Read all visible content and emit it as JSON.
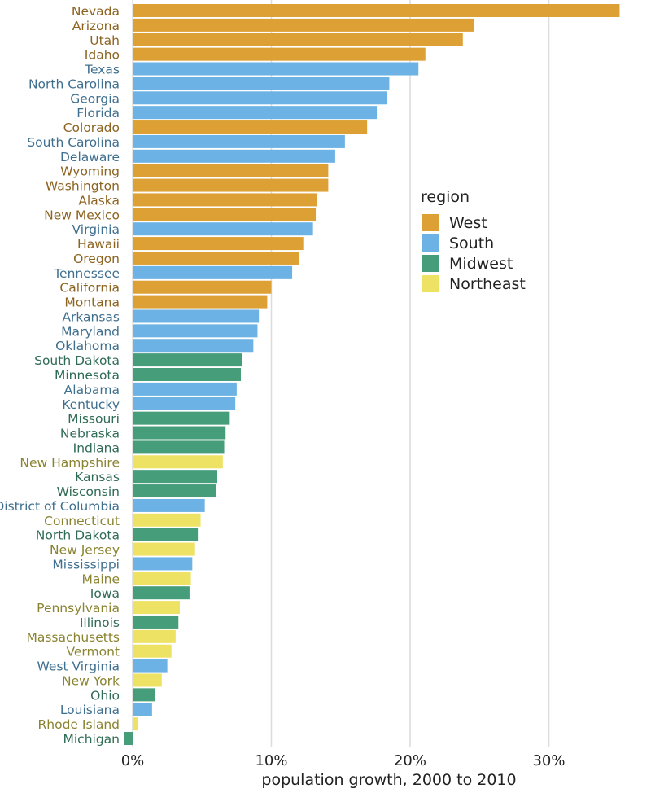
{
  "chart_data": {
    "type": "bar",
    "orientation": "horizontal",
    "xlabel": "population growth, 2000 to 2010",
    "ylabel": "",
    "xlim": [
      -0.6,
      35.5
    ],
    "x_ticks": [
      0,
      10,
      20,
      30
    ],
    "x_tick_labels": [
      "0%",
      "10%",
      "20%",
      "30%"
    ],
    "grid": "vertical major lines",
    "legend": {
      "title": "region",
      "placement": "right",
      "entries": [
        {
          "name": "West",
          "color": "#DDA035",
          "label_color": "#8C6320"
        },
        {
          "name": "South",
          "color": "#6CB2E4",
          "label_color": "#3F6F8F"
        },
        {
          "name": "Midwest",
          "color": "#459D79",
          "label_color": "#2F6B55"
        },
        {
          "name": "Northeast",
          "color": "#EEE265",
          "label_color": "#8A8330"
        }
      ]
    },
    "bars": [
      {
        "state": "Nevada",
        "value": 35.1,
        "region": "West"
      },
      {
        "state": "Arizona",
        "value": 24.6,
        "region": "West"
      },
      {
        "state": "Utah",
        "value": 23.8,
        "region": "West"
      },
      {
        "state": "Idaho",
        "value": 21.1,
        "region": "West"
      },
      {
        "state": "Texas",
        "value": 20.6,
        "region": "South"
      },
      {
        "state": "North Carolina",
        "value": 18.5,
        "region": "South"
      },
      {
        "state": "Georgia",
        "value": 18.3,
        "region": "South"
      },
      {
        "state": "Florida",
        "value": 17.6,
        "region": "South"
      },
      {
        "state": "Colorado",
        "value": 16.9,
        "region": "West"
      },
      {
        "state": "South Carolina",
        "value": 15.3,
        "region": "South"
      },
      {
        "state": "Delaware",
        "value": 14.6,
        "region": "South"
      },
      {
        "state": "Wyoming",
        "value": 14.1,
        "region": "West"
      },
      {
        "state": "Washington",
        "value": 14.1,
        "region": "West"
      },
      {
        "state": "Alaska",
        "value": 13.3,
        "region": "West"
      },
      {
        "state": "New Mexico",
        "value": 13.2,
        "region": "West"
      },
      {
        "state": "Virginia",
        "value": 13.0,
        "region": "South"
      },
      {
        "state": "Hawaii",
        "value": 12.3,
        "region": "West"
      },
      {
        "state": "Oregon",
        "value": 12.0,
        "region": "West"
      },
      {
        "state": "Tennessee",
        "value": 11.5,
        "region": "South"
      },
      {
        "state": "California",
        "value": 10.0,
        "region": "West"
      },
      {
        "state": "Montana",
        "value": 9.7,
        "region": "West"
      },
      {
        "state": "Arkansas",
        "value": 9.1,
        "region": "South"
      },
      {
        "state": "Maryland",
        "value": 9.0,
        "region": "South"
      },
      {
        "state": "Oklahoma",
        "value": 8.7,
        "region": "South"
      },
      {
        "state": "South Dakota",
        "value": 7.9,
        "region": "Midwest"
      },
      {
        "state": "Minnesota",
        "value": 7.8,
        "region": "Midwest"
      },
      {
        "state": "Alabama",
        "value": 7.5,
        "region": "South"
      },
      {
        "state": "Kentucky",
        "value": 7.4,
        "region": "South"
      },
      {
        "state": "Missouri",
        "value": 7.0,
        "region": "Midwest"
      },
      {
        "state": "Nebraska",
        "value": 6.7,
        "region": "Midwest"
      },
      {
        "state": "Indiana",
        "value": 6.6,
        "region": "Midwest"
      },
      {
        "state": "New Hampshire",
        "value": 6.5,
        "region": "Northeast"
      },
      {
        "state": "Kansas",
        "value": 6.1,
        "region": "Midwest"
      },
      {
        "state": "Wisconsin",
        "value": 6.0,
        "region": "Midwest"
      },
      {
        "state": "District of Columbia",
        "value": 5.2,
        "region": "South"
      },
      {
        "state": "Connecticut",
        "value": 4.9,
        "region": "Northeast"
      },
      {
        "state": "North Dakota",
        "value": 4.7,
        "region": "Midwest"
      },
      {
        "state": "New Jersey",
        "value": 4.5,
        "region": "Northeast"
      },
      {
        "state": "Mississippi",
        "value": 4.3,
        "region": "South"
      },
      {
        "state": "Maine",
        "value": 4.2,
        "region": "Northeast"
      },
      {
        "state": "Iowa",
        "value": 4.1,
        "region": "Midwest"
      },
      {
        "state": "Pennsylvania",
        "value": 3.4,
        "region": "Northeast"
      },
      {
        "state": "Illinois",
        "value": 3.3,
        "region": "Midwest"
      },
      {
        "state": "Massachusetts",
        "value": 3.1,
        "region": "Northeast"
      },
      {
        "state": "Vermont",
        "value": 2.8,
        "region": "Northeast"
      },
      {
        "state": "West Virginia",
        "value": 2.5,
        "region": "South"
      },
      {
        "state": "New York",
        "value": 2.1,
        "region": "Northeast"
      },
      {
        "state": "Ohio",
        "value": 1.6,
        "region": "Midwest"
      },
      {
        "state": "Louisiana",
        "value": 1.4,
        "region": "South"
      },
      {
        "state": "Rhode Island",
        "value": 0.4,
        "region": "Northeast"
      },
      {
        "state": "Michigan",
        "value": -0.6,
        "region": "Midwest"
      }
    ]
  }
}
